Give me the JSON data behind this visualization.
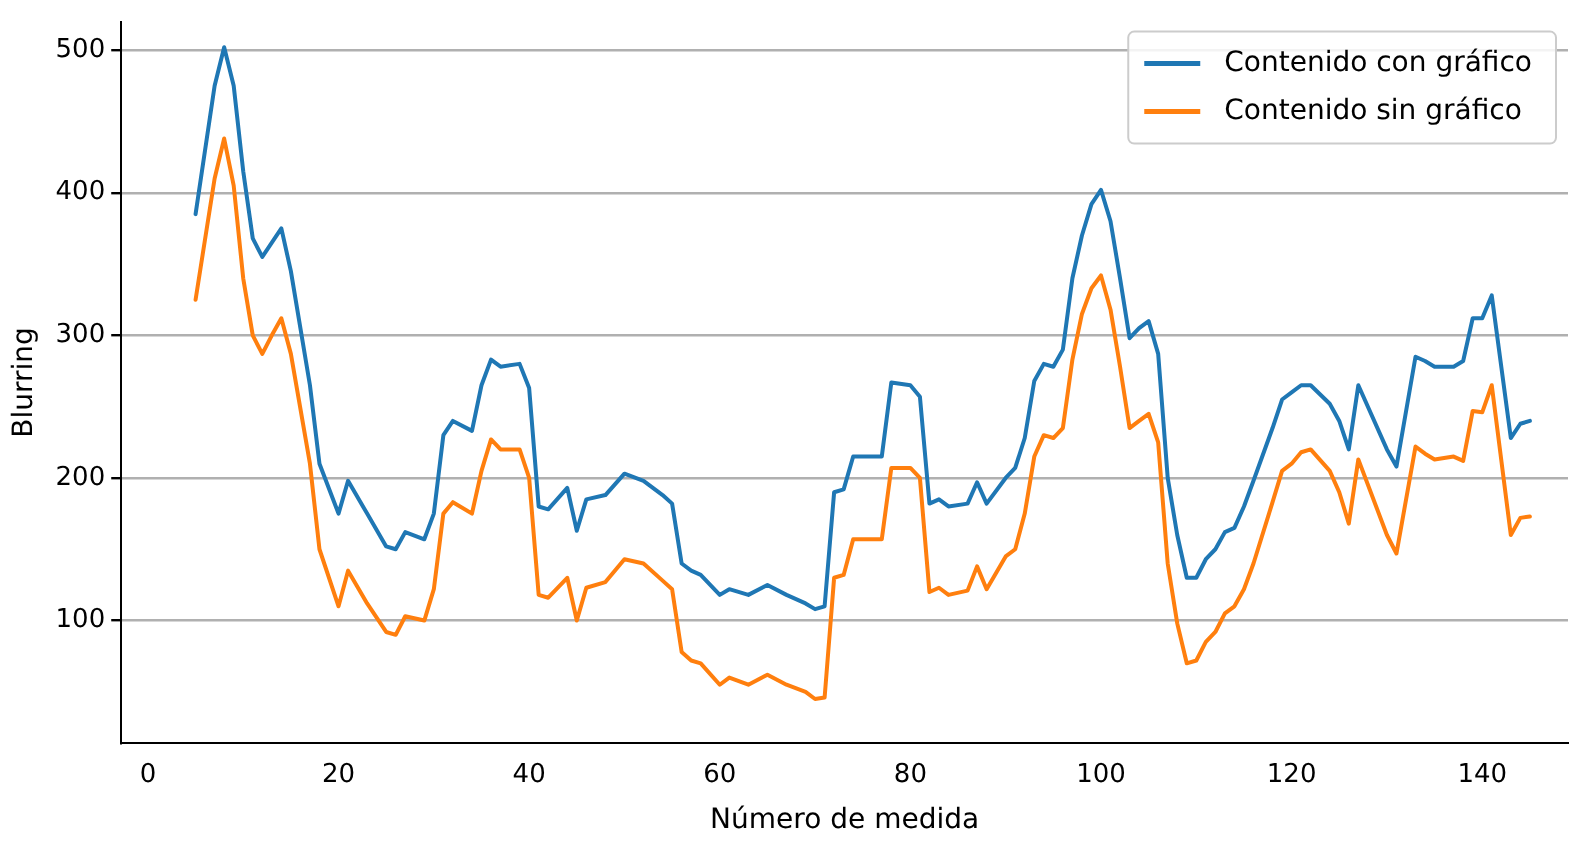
{
  "chart_data": {
    "type": "line",
    "xlabel": "Número de medida",
    "ylabel": "Blurring",
    "xlim": [
      -2.8,
      149
    ],
    "xticks": [
      0,
      20,
      40,
      60,
      80,
      100,
      120,
      140
    ],
    "ylim": [
      14,
      520
    ],
    "yticks": [
      100,
      200,
      300,
      400,
      500
    ],
    "grid": "y",
    "legend": "top right",
    "marker": "none",
    "line_style": "solid",
    "series": [
      {
        "name": "Contenido con gráfico",
        "color": "#1f77b4",
        "x": [
          5,
          7,
          8,
          9,
          10,
          11,
          12,
          13,
          14,
          15,
          17,
          18,
          20,
          21,
          23,
          25,
          26,
          27,
          29,
          30,
          31,
          32,
          34,
          35,
          36,
          37,
          39,
          40,
          41,
          42,
          44,
          45,
          46,
          48,
          50,
          52,
          54,
          55,
          56,
          57,
          58,
          60,
          61,
          63,
          65,
          67,
          69,
          70,
          71,
          72,
          73,
          74,
          77,
          78,
          80,
          81,
          82,
          83,
          84,
          86,
          87,
          88,
          90,
          91,
          92,
          93,
          94,
          95,
          96,
          97,
          98,
          99,
          100,
          101,
          102,
          103,
          104,
          105,
          106,
          107,
          108,
          109,
          110,
          111,
          112,
          113,
          114,
          115,
          116,
          118,
          119,
          120,
          121,
          122,
          124,
          125,
          126,
          127,
          130,
          131,
          133,
          134,
          135,
          137,
          138,
          139,
          140,
          141,
          143,
          144,
          145
        ],
        "values": [
          385,
          475,
          502,
          475,
          415,
          368,
          355,
          365,
          375,
          345,
          265,
          210,
          175,
          198,
          175,
          152,
          150,
          162,
          157,
          175,
          230,
          240,
          233,
          265,
          283,
          278,
          280,
          263,
          180,
          178,
          193,
          163,
          185,
          188,
          203,
          198,
          188,
          182,
          140,
          135,
          132,
          118,
          122,
          118,
          125,
          118,
          112,
          108,
          110,
          190,
          192,
          215,
          215,
          267,
          265,
          257,
          182,
          185,
          180,
          182,
          197,
          182,
          200,
          207,
          228,
          268,
          280,
          278,
          290,
          340,
          370,
          392,
          402,
          380,
          340,
          298,
          305,
          310,
          287,
          200,
          160,
          130,
          130,
          143,
          150,
          162,
          165,
          180,
          198,
          235,
          255,
          260,
          265,
          265,
          252,
          240,
          220,
          265,
          220,
          208,
          285,
          282,
          278,
          278,
          282,
          312,
          312,
          328,
          228,
          238,
          240
        ]
      },
      {
        "name": "Contenido sin gráfico",
        "color": "#ff7f0e",
        "x": [
          5,
          7,
          8,
          9,
          10,
          11,
          12,
          13,
          14,
          15,
          17,
          18,
          20,
          21,
          23,
          25,
          26,
          27,
          29,
          30,
          31,
          32,
          34,
          35,
          36,
          37,
          39,
          40,
          41,
          42,
          44,
          45,
          46,
          48,
          50,
          52,
          54,
          55,
          56,
          57,
          58,
          60,
          61,
          63,
          65,
          67,
          69,
          70,
          71,
          72,
          73,
          74,
          77,
          78,
          80,
          81,
          82,
          83,
          84,
          86,
          87,
          88,
          90,
          91,
          92,
          93,
          94,
          95,
          96,
          97,
          98,
          99,
          100,
          101,
          102,
          103,
          104,
          105,
          106,
          107,
          108,
          109,
          110,
          111,
          112,
          113,
          114,
          115,
          116,
          118,
          119,
          120,
          121,
          122,
          124,
          125,
          126,
          127,
          130,
          131,
          133,
          134,
          135,
          137,
          138,
          139,
          140,
          141,
          143,
          144,
          145
        ],
        "values": [
          325,
          410,
          438,
          405,
          340,
          300,
          287,
          300,
          312,
          287,
          210,
          150,
          110,
          135,
          112,
          92,
          90,
          103,
          100,
          122,
          175,
          183,
          175,
          205,
          227,
          220,
          220,
          200,
          118,
          116,
          130,
          100,
          123,
          127,
          143,
          140,
          128,
          122,
          78,
          72,
          70,
          55,
          60,
          55,
          62,
          55,
          50,
          45,
          46,
          130,
          132,
          157,
          157,
          207,
          207,
          200,
          120,
          123,
          118,
          121,
          138,
          122,
          145,
          150,
          175,
          215,
          230,
          228,
          235,
          283,
          315,
          333,
          342,
          318,
          278,
          235,
          240,
          245,
          225,
          140,
          98,
          70,
          72,
          85,
          92,
          105,
          110,
          122,
          140,
          183,
          205,
          210,
          218,
          220,
          205,
          190,
          168,
          213,
          160,
          147,
          222,
          217,
          213,
          215,
          212,
          247,
          246,
          265,
          160,
          172,
          173
        ]
      }
    ]
  }
}
